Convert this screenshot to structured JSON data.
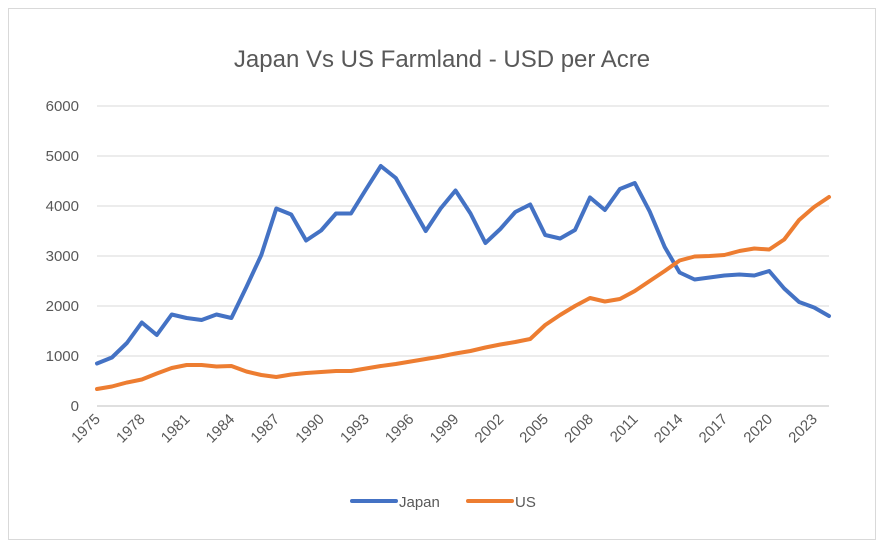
{
  "chart_data": {
    "type": "line",
    "title": "Japan Vs US Farmland - USD per Acre",
    "xlabel": "",
    "ylabel": "",
    "ylim": [
      0,
      6000
    ],
    "y_ticks": [
      0,
      1000,
      2000,
      3000,
      4000,
      5000,
      6000
    ],
    "x_tick_labels": [
      "1975",
      "1978",
      "1981",
      "1984",
      "1987",
      "1990",
      "1993",
      "1996",
      "1999",
      "2002",
      "2005",
      "2008",
      "2011",
      "2014",
      "2017",
      "2020",
      "2023"
    ],
    "grid": "horizontal",
    "legend_position": "bottom",
    "x": [
      1975,
      1976,
      1977,
      1978,
      1979,
      1980,
      1981,
      1982,
      1983,
      1984,
      1985,
      1986,
      1987,
      1988,
      1989,
      1990,
      1991,
      1992,
      1993,
      1994,
      1995,
      1996,
      1997,
      1998,
      1999,
      2000,
      2001,
      2002,
      2003,
      2004,
      2005,
      2006,
      2007,
      2008,
      2009,
      2010,
      2011,
      2012,
      2013,
      2014,
      2015,
      2016,
      2017,
      2018,
      2019,
      2020,
      2021,
      2022,
      2023,
      2024
    ],
    "series": [
      {
        "name": "Japan",
        "color": "#4472c4",
        "values": [
          850,
          970,
          1260,
          1670,
          1420,
          1830,
          1760,
          1720,
          1830,
          1760,
          2380,
          3020,
          3950,
          3830,
          3310,
          3510,
          3850,
          3850,
          4330,
          4800,
          4560,
          4030,
          3500,
          3950,
          4310,
          3850,
          3260,
          3540,
          3880,
          4030,
          3420,
          3350,
          3520,
          4170,
          3920,
          4340,
          4460,
          3890,
          3180,
          2670,
          2530,
          2570,
          2610,
          2630,
          2610,
          2700,
          2350,
          2080,
          1970,
          1800
        ]
      },
      {
        "name": "US",
        "color": "#ed7d31",
        "values": [
          340,
          390,
          470,
          530,
          650,
          760,
          820,
          820,
          790,
          800,
          690,
          620,
          580,
          630,
          660,
          680,
          700,
          700,
          750,
          800,
          840,
          890,
          940,
          990,
          1050,
          1100,
          1170,
          1230,
          1280,
          1340,
          1620,
          1820,
          2000,
          2160,
          2090,
          2140,
          2300,
          2500,
          2700,
          2910,
          2990,
          3000,
          3020,
          3100,
          3150,
          3130,
          3330,
          3720,
          3980,
          4180
        ]
      }
    ]
  }
}
